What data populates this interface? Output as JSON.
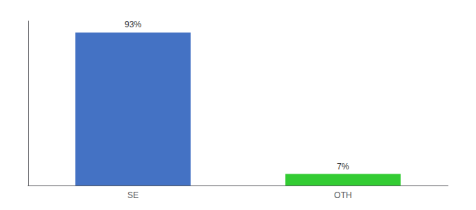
{
  "chart_data": {
    "type": "bar",
    "categories": [
      "SE",
      "OTH"
    ],
    "values": [
      93,
      7
    ],
    "value_labels": [
      "93%",
      "7%"
    ],
    "colors": [
      "#4472c4",
      "#33cc33"
    ],
    "ylim": [
      0,
      100
    ],
    "data_labels": true,
    "tick_labels": "x",
    "grid": false
  }
}
